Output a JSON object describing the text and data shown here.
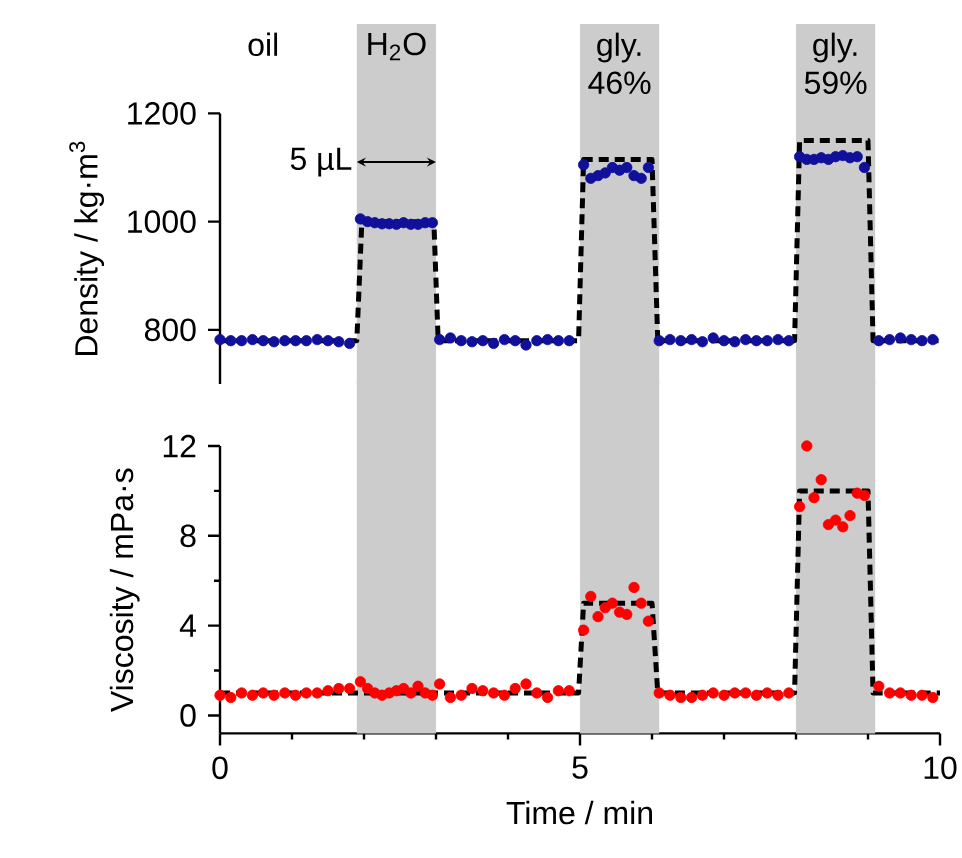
{
  "chart_data": [
    {
      "type": "scatter",
      "ylabel": "Density / kg·m$^{3}$",
      "xlim": [
        0,
        10
      ],
      "ylim": [
        700,
        1200
      ],
      "yticks": [
        800,
        1000,
        1200
      ],
      "tick_labels": "y",
      "marker": "circle",
      "annotations": [
        "oil",
        "5 µL"
      ],
      "bands": [
        {
          "axis": "x",
          "from": 1.9,
          "to": 3.0,
          "label": "H$_{2}$O",
          "color": "#cccccc"
        },
        {
          "axis": "x",
          "from": 5.0,
          "to": 6.1,
          "label": "gly. 46%",
          "color": "#cccccc"
        },
        {
          "axis": "x",
          "from": 8.0,
          "to": 9.1,
          "label": "gly. 59%",
          "color": "#cccccc"
        }
      ],
      "series": [
        {
          "color": "#10109a",
          "x": [
            0.0,
            0.15,
            0.3,
            0.45,
            0.6,
            0.75,
            0.9,
            1.05,
            1.2,
            1.35,
            1.5,
            1.65,
            1.8,
            1.95,
            2.05,
            2.15,
            2.25,
            2.35,
            2.45,
            2.55,
            2.65,
            2.75,
            2.85,
            2.95,
            3.05,
            3.2,
            3.35,
            3.5,
            3.65,
            3.8,
            3.95,
            4.1,
            4.25,
            4.4,
            4.55,
            4.7,
            4.85,
            5.05,
            5.15,
            5.25,
            5.35,
            5.45,
            5.55,
            5.65,
            5.75,
            5.85,
            5.95,
            6.1,
            6.25,
            6.4,
            6.55,
            6.7,
            6.85,
            7.0,
            7.15,
            7.3,
            7.45,
            7.6,
            7.75,
            7.9,
            8.05,
            8.15,
            8.25,
            8.35,
            8.45,
            8.55,
            8.65,
            8.75,
            8.85,
            8.95,
            9.15,
            9.3,
            9.45,
            9.6,
            9.75,
            9.9
          ],
          "values": [
            782,
            780,
            780,
            782,
            780,
            778,
            780,
            780,
            780,
            782,
            780,
            778,
            775,
            1005,
            1000,
            998,
            996,
            996,
            995,
            998,
            995,
            995,
            998,
            998,
            782,
            785,
            780,
            778,
            780,
            775,
            782,
            780,
            772,
            780,
            782,
            780,
            780,
            1105,
            1080,
            1085,
            1090,
            1100,
            1095,
            1100,
            1085,
            1080,
            1100,
            780,
            782,
            780,
            782,
            778,
            785,
            780,
            778,
            782,
            780,
            780,
            782,
            780,
            1120,
            1115,
            1115,
            1118,
            1115,
            1120,
            1122,
            1118,
            1120,
            1100,
            780,
            782,
            785,
            782,
            780,
            782
          ]
        },
        {
          "type": "line",
          "color": "#000000",
          "line_style": "dashed",
          "marker": "none",
          "x": [
            0,
            1.9,
            1.97,
            2.97,
            3.03,
            4.98,
            5.05,
            6.0,
            6.08,
            7.98,
            8.05,
            9.0,
            9.07,
            10
          ],
          "values": [
            780,
            780,
            1000,
            1000,
            780,
            780,
            1115,
            1115,
            780,
            780,
            1150,
            1150,
            780,
            780
          ]
        }
      ]
    },
    {
      "type": "scatter",
      "xlabel": "Time / min",
      "ylabel": "Viscosity / mPa·s",
      "xlim": [
        0,
        10
      ],
      "xticks": [
        0,
        5,
        10
      ],
      "ylim": [
        -0.8,
        12
      ],
      "yticks": [
        0,
        4,
        8,
        12
      ],
      "marker": "circle",
      "bands": [
        {
          "axis": "x",
          "from": 1.9,
          "to": 3.0,
          "color": "#cccccc"
        },
        {
          "axis": "x",
          "from": 5.0,
          "to": 6.1,
          "color": "#cccccc"
        },
        {
          "axis": "x",
          "from": 8.0,
          "to": 9.1,
          "color": "#cccccc"
        }
      ],
      "series": [
        {
          "color": "#ff0000",
          "x": [
            0.0,
            0.15,
            0.3,
            0.45,
            0.6,
            0.75,
            0.9,
            1.05,
            1.2,
            1.35,
            1.5,
            1.65,
            1.8,
            1.95,
            2.05,
            2.15,
            2.25,
            2.35,
            2.45,
            2.55,
            2.65,
            2.75,
            2.85,
            2.95,
            3.05,
            3.2,
            3.35,
            3.5,
            3.65,
            3.8,
            3.95,
            4.1,
            4.25,
            4.4,
            4.55,
            4.7,
            4.85,
            5.05,
            5.15,
            5.25,
            5.35,
            5.45,
            5.55,
            5.65,
            5.75,
            5.85,
            5.95,
            6.1,
            6.25,
            6.4,
            6.55,
            6.7,
            6.85,
            7.0,
            7.15,
            7.3,
            7.45,
            7.6,
            7.75,
            7.9,
            8.05,
            8.15,
            8.25,
            8.35,
            8.45,
            8.55,
            8.65,
            8.75,
            8.85,
            8.95,
            9.15,
            9.3,
            9.45,
            9.6,
            9.75,
            9.9
          ],
          "values": [
            0.9,
            0.8,
            1.0,
            0.9,
            1.0,
            0.9,
            1.0,
            0.9,
            1.0,
            1.0,
            1.1,
            1.2,
            1.2,
            1.5,
            1.2,
            1.0,
            0.9,
            1.0,
            1.1,
            1.2,
            1.0,
            1.3,
            1.0,
            0.9,
            1.4,
            0.8,
            0.9,
            1.2,
            1.1,
            1.0,
            0.9,
            1.2,
            1.4,
            1.0,
            0.8,
            1.1,
            1.1,
            3.8,
            5.3,
            4.4,
            4.8,
            5.0,
            4.6,
            4.5,
            5.7,
            5.0,
            4.2,
            1.0,
            0.9,
            0.8,
            0.8,
            0.9,
            1.0,
            0.9,
            1.0,
            1.0,
            0.9,
            1.0,
            0.9,
            1.0,
            9.3,
            12.0,
            9.7,
            10.5,
            8.5,
            8.7,
            8.4,
            8.9,
            9.9,
            9.8,
            1.3,
            1.0,
            1.0,
            0.9,
            0.9,
            0.8
          ]
        },
        {
          "type": "line",
          "color": "#000000",
          "line_style": "dashed",
          "marker": "none",
          "x": [
            0,
            4.98,
            5.05,
            6.0,
            6.08,
            7.98,
            8.05,
            9.0,
            9.07,
            10
          ],
          "values": [
            1,
            1,
            5,
            5,
            1,
            1,
            10,
            10,
            1,
            1
          ]
        }
      ]
    }
  ]
}
